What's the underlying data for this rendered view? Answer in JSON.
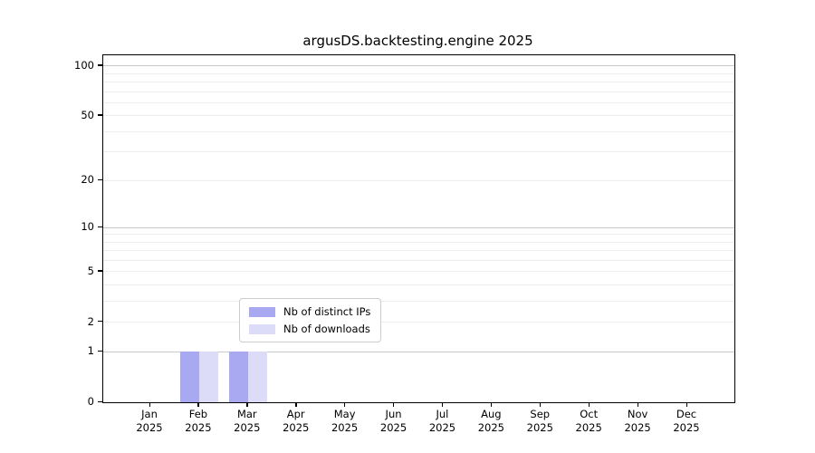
{
  "figure": {
    "title": "argusDS.backtesting.engine 2025"
  },
  "chart_data": {
    "type": "bar",
    "title": "argusDS.backtesting.engine 2025",
    "categories": [
      {
        "month": "Jan",
        "year": "2025"
      },
      {
        "month": "Feb",
        "year": "2025"
      },
      {
        "month": "Mar",
        "year": "2025"
      },
      {
        "month": "Apr",
        "year": "2025"
      },
      {
        "month": "May",
        "year": "2025"
      },
      {
        "month": "Jun",
        "year": "2025"
      },
      {
        "month": "Jul",
        "year": "2025"
      },
      {
        "month": "Aug",
        "year": "2025"
      },
      {
        "month": "Sep",
        "year": "2025"
      },
      {
        "month": "Oct",
        "year": "2025"
      },
      {
        "month": "Nov",
        "year": "2025"
      },
      {
        "month": "Dec",
        "year": "2025"
      }
    ],
    "series": [
      {
        "name": "Nb of distinct IPs",
        "color": "#a9a9f1",
        "values": [
          0,
          1,
          1,
          0,
          0,
          0,
          0,
          0,
          0,
          0,
          0,
          0
        ]
      },
      {
        "name": "Nb of downloads",
        "color": "#dcdcf8",
        "values": [
          0,
          1,
          1,
          0,
          0,
          0,
          0,
          0,
          0,
          0,
          0,
          0
        ]
      }
    ],
    "yscale": "log1p",
    "yticks": [
      0,
      1,
      2,
      5,
      10,
      20,
      50,
      100
    ],
    "ylim": [
      0,
      115
    ],
    "xlabel": "",
    "ylabel": "",
    "grid": "horizontal; major at 1,10,100; minor at 2-9 and 20-90",
    "legend_position": "lower center",
    "colors": {
      "grid_major": "#c9c9c9",
      "grid_minor": "#ededed",
      "spine": "#000000",
      "background": "#ffffff"
    }
  }
}
